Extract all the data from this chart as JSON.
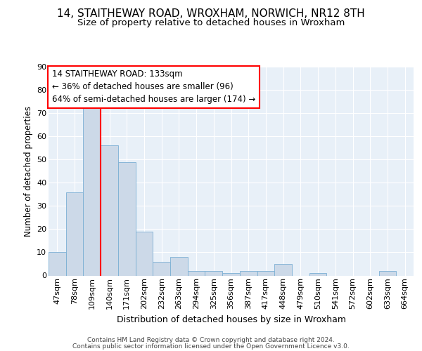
{
  "title1": "14, STAITHEWAY ROAD, WROXHAM, NORWICH, NR12 8TH",
  "title2": "Size of property relative to detached houses in Wroxham",
  "xlabel": "Distribution of detached houses by size in Wroxham",
  "ylabel": "Number of detached properties",
  "bin_labels": [
    "47sqm",
    "78sqm",
    "109sqm",
    "140sqm",
    "171sqm",
    "202sqm",
    "232sqm",
    "263sqm",
    "294sqm",
    "325sqm",
    "356sqm",
    "387sqm",
    "417sqm",
    "448sqm",
    "479sqm",
    "510sqm",
    "541sqm",
    "572sqm",
    "602sqm",
    "633sqm",
    "664sqm"
  ],
  "bar_heights": [
    10,
    36,
    74,
    56,
    49,
    19,
    6,
    8,
    2,
    2,
    1,
    2,
    2,
    5,
    0,
    1,
    0,
    0,
    0,
    2,
    0
  ],
  "bar_color": "#ccd9e8",
  "bar_edge_color": "#7bafd4",
  "bar_width": 1.0,
  "red_line_x": 3.0,
  "annotation_line1": "14 STAITHEWAY ROAD: 133sqm",
  "annotation_line2": "← 36% of detached houses are smaller (96)",
  "annotation_line3": "64% of semi-detached houses are larger (174) →",
  "annotation_box_color": "white",
  "annotation_box_edge_color": "red",
  "ylim": [
    0,
    90
  ],
  "yticks": [
    0,
    10,
    20,
    30,
    40,
    50,
    60,
    70,
    80,
    90
  ],
  "background_color": "#e8f0f8",
  "grid_color": "#ffffff",
  "footer_line1": "Contains HM Land Registry data © Crown copyright and database right 2024.",
  "footer_line2": "Contains public sector information licensed under the Open Government Licence v3.0.",
  "title1_fontsize": 11,
  "title2_fontsize": 9.5,
  "xlabel_fontsize": 9,
  "ylabel_fontsize": 8.5,
  "tick_fontsize": 8,
  "annotation_fontsize": 8.5,
  "footer_fontsize": 6.5
}
